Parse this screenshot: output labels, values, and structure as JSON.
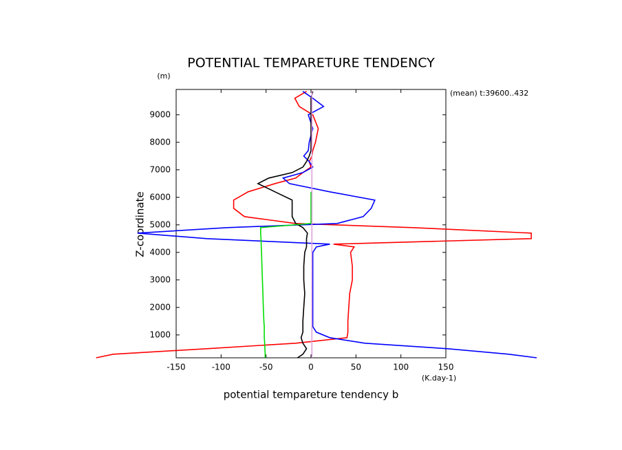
{
  "chart_data": {
    "type": "line",
    "title": "POTENTIAL TEMPARETURE TENDENCY",
    "x_label": "potential tempareture tendency b",
    "x_unit": "(K.day-1)",
    "y_label": "Z-coordinate",
    "y_unit": "(m)",
    "annotation": "(mean) t:39600..432",
    "y": [
      170,
      300,
      500,
      700,
      900,
      1100,
      1300,
      1500,
      2000,
      2500,
      3000,
      3500,
      4000,
      4200,
      4300,
      4500,
      4700,
      4900,
      5050,
      5300,
      5600,
      5900,
      6200,
      6500,
      6700,
      6900,
      7100,
      7300,
      7500,
      7700,
      8000,
      8500,
      9000,
      9300,
      9600,
      9850
    ],
    "series": [
      {
        "color": "#ff0000",
        "values": [
          -239,
          -220,
          -116,
          -17,
          40,
          41,
          41,
          41,
          42,
          43,
          46,
          46,
          44,
          48,
          25,
          245,
          245,
          113,
          -17,
          -74,
          -86,
          -86,
          -70,
          -40,
          -17,
          -9,
          0,
          -2,
          1,
          2,
          5,
          8,
          2,
          -13,
          -18,
          -5
        ]
      },
      {
        "color": "#0000ff",
        "values": [
          251,
          220,
          152,
          60,
          21,
          6,
          2,
          2,
          2,
          2,
          2,
          2,
          2,
          6,
          21,
          -116,
          -193,
          -93,
          29,
          58,
          67,
          71,
          21,
          -24,
          -31,
          -9,
          2,
          -2,
          -8,
          -3,
          -2,
          2,
          -3,
          14,
          2,
          -9
        ]
      },
      {
        "color": "#000000",
        "values": [
          -15,
          -9,
          -5,
          -9,
          -11,
          -9,
          -9,
          -9,
          -8,
          -7,
          -8,
          -8,
          -7,
          -5,
          -5,
          -5,
          -4,
          -9,
          -17,
          -21,
          -21,
          -21,
          -40,
          -59,
          -47,
          -21,
          -9,
          -5,
          -2,
          0,
          0,
          0,
          0,
          0,
          0,
          2
        ]
      },
      {
        "color": "#00dd00",
        "values": [
          -51,
          -51,
          -51.3,
          -51.5,
          -52,
          -52,
          -52,
          -52.4,
          -53,
          -53.5,
          -54,
          -54.6,
          -55,
          -55.3,
          -55.4,
          -55.6,
          -56,
          -56,
          0,
          0,
          0,
          0,
          0,
          null,
          null,
          null,
          null,
          null,
          null,
          null,
          null,
          null,
          null,
          null,
          null,
          null
        ]
      },
      {
        "color": "#dda0dd",
        "values": [
          1,
          1,
          1,
          1,
          1,
          1,
          1,
          1,
          1,
          1,
          1,
          1,
          1,
          1,
          1,
          1,
          1,
          1,
          1,
          1,
          1,
          1,
          1,
          1,
          1,
          1,
          1,
          1,
          1,
          1,
          1,
          1,
          1,
          1,
          1,
          1
        ]
      }
    ],
    "xlim": [
      -150,
      150
    ],
    "xticks": [
      -150,
      -100,
      -50,
      0,
      50,
      100,
      150
    ],
    "ylim": [
      170,
      9920
    ],
    "yticks": [
      1000,
      2000,
      3000,
      4000,
      5000,
      6000,
      7000,
      8000,
      9000
    ]
  }
}
